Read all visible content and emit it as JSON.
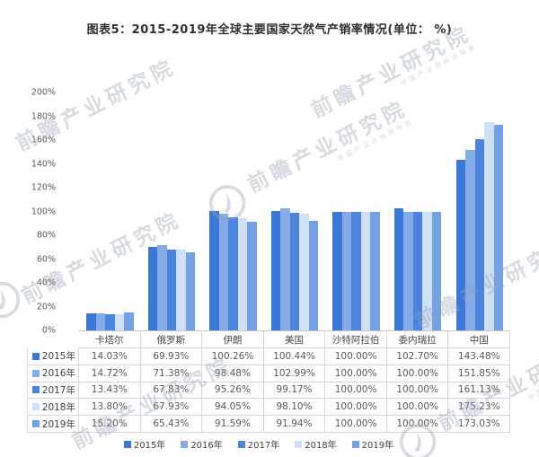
{
  "chart_data": {
    "type": "bar",
    "title": "图表5：2015-2019年全球主要国家天然气产销率情况(单位： %)",
    "categories": [
      "卡塔尔",
      "俄罗斯",
      "伊朗",
      "美国",
      "沙特阿拉伯",
      "委内瑞拉",
      "中国"
    ],
    "series": [
      {
        "name": "2015年",
        "color": "#3C78D8",
        "values": [
          14.03,
          69.93,
          100.26,
          100.44,
          100.0,
          102.7,
          143.48
        ]
      },
      {
        "name": "2016年",
        "color": "#85AAE8",
        "values": [
          14.72,
          71.38,
          98.48,
          102.99,
          100.0,
          100.0,
          151.85
        ]
      },
      {
        "name": "2017年",
        "color": "#4A84DD",
        "values": [
          13.43,
          67.83,
          95.26,
          99.17,
          100.0,
          100.0,
          161.13
        ]
      },
      {
        "name": "2018年",
        "color": "#CFE0F7",
        "values": [
          13.8,
          67.93,
          94.05,
          98.1,
          100.0,
          100.0,
          175.23
        ]
      },
      {
        "name": "2019年",
        "color": "#74A0E6",
        "values": [
          15.2,
          65.43,
          91.59,
          91.94,
          100.0,
          100.0,
          173.03
        ]
      }
    ],
    "xlabel": "",
    "ylabel": "",
    "ylim": [
      0,
      200
    ],
    "ytick_step": 20,
    "ytick_suffix": "%",
    "grid": false,
    "legend_position": "bottom",
    "data_table_shown": true,
    "value_suffix": "%"
  },
  "watermark": {
    "text": "前瞻产业研究院",
    "subtext": "中国产业咨询领导者"
  }
}
